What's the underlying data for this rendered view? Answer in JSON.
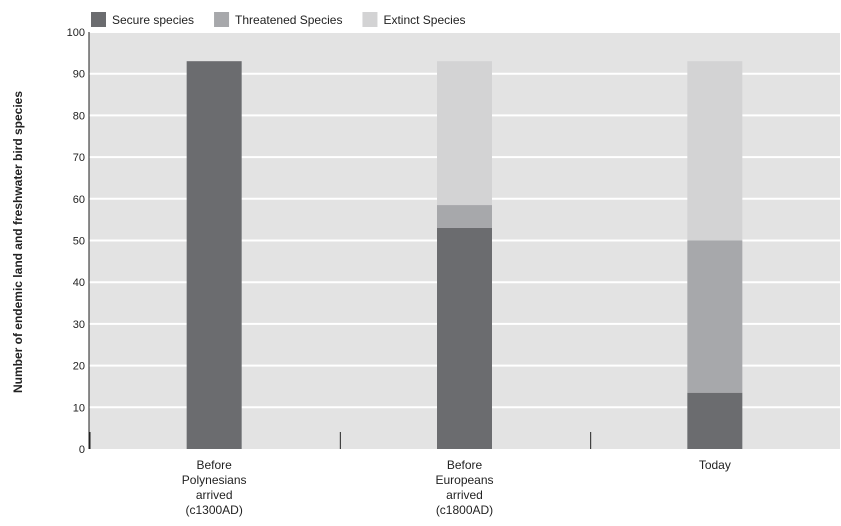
{
  "chart_data": {
    "type": "bar",
    "stacked": true,
    "title": "",
    "xlabel": "",
    "ylabel": "Number of endemic land and freshwater bird species",
    "ylim": [
      0,
      100
    ],
    "yticks": [
      0,
      10,
      20,
      30,
      40,
      50,
      60,
      70,
      80,
      90,
      100
    ],
    "grid": true,
    "legend_position": "top-left",
    "categories": [
      [
        "Before",
        "Polynesians",
        "arrived",
        "(c1300AD)"
      ],
      [
        "Before",
        "Europeans",
        "arrived",
        "(c1800AD)"
      ],
      [
        "Today"
      ]
    ],
    "series": [
      {
        "name": "Secure species",
        "color": "#6b6c6f",
        "values": [
          93,
          53,
          13.5
        ]
      },
      {
        "name": "Threatened Species",
        "color": "#a7a8ab",
        "values": [
          0,
          5.5,
          36.5
        ]
      },
      {
        "name": "Extinct Species",
        "color": "#d3d3d4",
        "values": [
          0,
          34.5,
          43
        ]
      }
    ],
    "plot_background": "#e3e3e3",
    "gridline_color": "#ffffff"
  }
}
